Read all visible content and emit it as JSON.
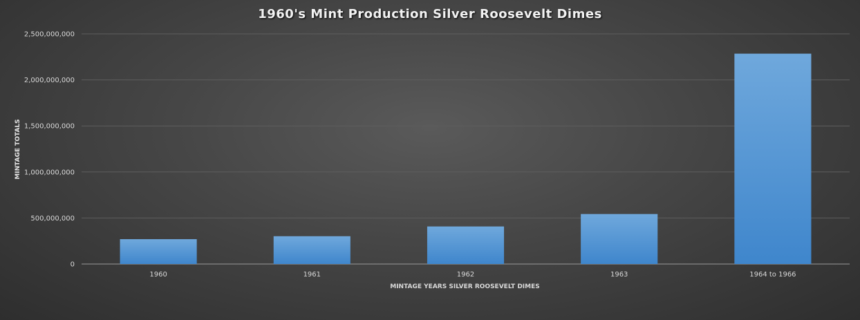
{
  "chart_data": {
    "type": "bar",
    "title": "1960's Mint Production Silver Roosevelt Dimes",
    "xlabel": "MINTAGE YEARS SILVER ROOSEVELT DIMES",
    "ylabel": "MINTAGE TOTALS",
    "categories": [
      "1960",
      "1961",
      "1962",
      "1963",
      "1964 to 1966"
    ],
    "values": [
      270000000,
      302000000,
      408000000,
      543000000,
      2285000000
    ],
    "ylim": [
      0,
      2500000000
    ],
    "yticks": [
      0,
      500000000,
      1000000000,
      1500000000,
      2000000000,
      2500000000
    ],
    "ytick_labels": [
      "0",
      "500,000,000",
      "1,000,000,000",
      "1,500,000,000",
      "2,000,000,000",
      "2,500,000,000"
    ],
    "grid": true,
    "legend": "none",
    "bar_color_top": "#6fa8dc",
    "bar_color_bottom": "#3f86cc",
    "background_color": "#404040"
  }
}
